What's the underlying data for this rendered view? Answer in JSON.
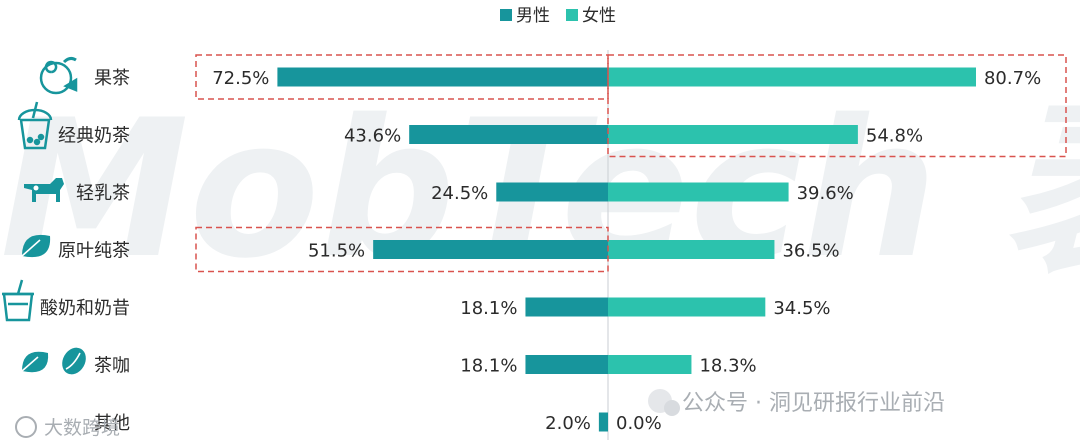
{
  "chart_data": {
    "type": "bar",
    "orientation": "horizontal-diverging",
    "categories": [
      "果茶",
      "经典奶茶",
      "轻乳茶",
      "原叶纯茶",
      "酸奶和奶昔",
      "茶咖",
      "其他"
    ],
    "series": [
      {
        "name": "男性",
        "values": [
          72.5,
          43.6,
          24.5,
          51.5,
          18.1,
          18.1,
          2.0
        ],
        "labels": [
          "72.5%",
          "43.6%",
          "24.5%",
          "51.5%",
          "18.1%",
          "18.1%",
          "2.0%"
        ],
        "color": "#17959c"
      },
      {
        "name": "女性",
        "values": [
          80.7,
          54.8,
          39.6,
          36.5,
          34.5,
          18.3,
          0.0
        ],
        "labels": [
          "80.7%",
          "54.8%",
          "39.6%",
          "36.5%",
          "34.5%",
          "18.3%",
          "0.0%"
        ],
        "color": "#2cc2ad"
      }
    ],
    "icons": [
      "fruit-icon",
      "bubble-tea-cup-icon",
      "cow-icon",
      "leaf-icon",
      "shake-cup-icon",
      "leaf-and-coffee-bean-icon",
      ""
    ],
    "highlights": [
      {
        "series": "男性",
        "category": "果茶"
      },
      {
        "series": "女性",
        "category": "果茶"
      },
      {
        "series": "女性",
        "category": "经典奶茶"
      },
      {
        "series": "男性",
        "category": "原叶纯茶"
      }
    ],
    "legend_position": "top-center",
    "grid": false
  },
  "watermarks": {
    "background": "MobTech 袤",
    "footer_right": "公众号 · 洞见研报行业前沿",
    "footer_left": "大数跨境"
  },
  "colors": {
    "male": "#17959c",
    "female": "#2cc2ad",
    "highlight_border": "#d9534f",
    "text": "#2b2b2b",
    "watermark": "#eef1f3"
  }
}
